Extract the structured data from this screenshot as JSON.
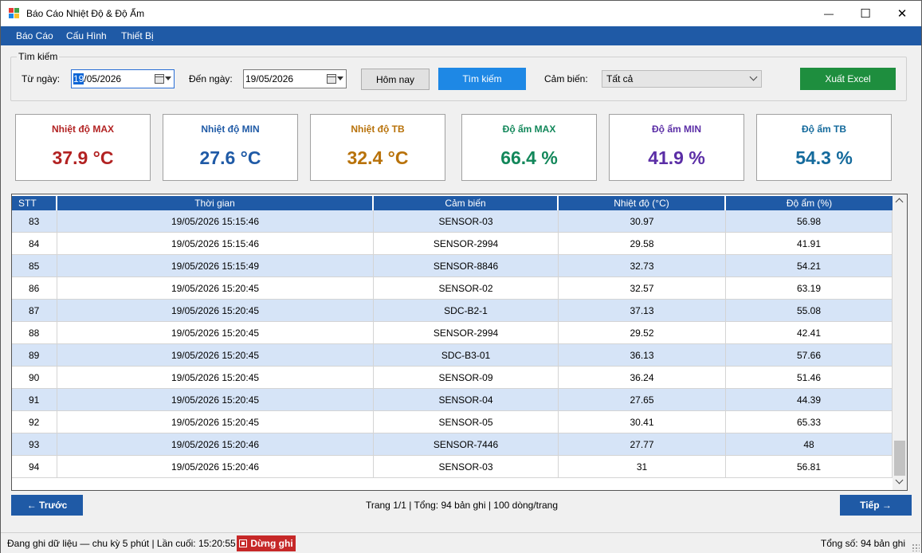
{
  "window": {
    "title": "Báo Cáo Nhiệt Độ & Độ Ẩm",
    "minimize": "—",
    "maximize": "☐",
    "close": "✕"
  },
  "menu": [
    "Báo Cáo",
    "Cấu Hình",
    "Thiết Bị"
  ],
  "search": {
    "legend": "Tìm kiếm",
    "from_label": "Từ ngày:",
    "from_value_sel": "19",
    "from_value_rest": "/05/2026",
    "to_label": "Đến ngày:",
    "to_value": "19/05/2026",
    "today_button": "Hôm nay",
    "search_button": "Tìm kiếm",
    "sensor_label": "Cảm biến:",
    "sensor_value": "Tất cả",
    "export_button": "Xuất Excel"
  },
  "cards": [
    {
      "title": "Nhiệt độ MAX",
      "value": "37.9 °C",
      "color": "#b22222"
    },
    {
      "title": "Nhiệt độ MIN",
      "value": "27.6 °C",
      "color": "#1f5aa6"
    },
    {
      "title": "Nhiệt độ TB",
      "value": "32.4 °C",
      "color": "#b8720a"
    },
    {
      "title": "Độ ẩm MAX",
      "value": "66.4 %",
      "color": "#12875a"
    },
    {
      "title": "Độ ẩm MIN",
      "value": "41.9 %",
      "color": "#5b2ea6"
    },
    {
      "title": "Độ ẩm TB",
      "value": "54.3 %",
      "color": "#146a9c"
    }
  ],
  "table": {
    "columns": [
      "STT",
      "Thời gian",
      "Cảm biến",
      "Nhiệt độ (°C)",
      "Độ ẩm (%)"
    ],
    "rows": [
      [
        "83",
        "19/05/2026 15:15:46",
        "SENSOR-03",
        "30.97",
        "56.98"
      ],
      [
        "84",
        "19/05/2026 15:15:46",
        "SENSOR-2994",
        "29.58",
        "41.91"
      ],
      [
        "85",
        "19/05/2026 15:15:49",
        "SENSOR-8846",
        "32.73",
        "54.21"
      ],
      [
        "86",
        "19/05/2026 15:20:45",
        "SENSOR-02",
        "32.57",
        "63.19"
      ],
      [
        "87",
        "19/05/2026 15:20:45",
        "SDC-B2-1",
        "37.13",
        "55.08"
      ],
      [
        "88",
        "19/05/2026 15:20:45",
        "SENSOR-2994",
        "29.52",
        "42.41"
      ],
      [
        "89",
        "19/05/2026 15:20:45",
        "SDC-B3-01",
        "36.13",
        "57.66"
      ],
      [
        "90",
        "19/05/2026 15:20:45",
        "SENSOR-09",
        "36.24",
        "51.46"
      ],
      [
        "91",
        "19/05/2026 15:20:45",
        "SENSOR-04",
        "27.65",
        "44.39"
      ],
      [
        "92",
        "19/05/2026 15:20:45",
        "SENSOR-05",
        "30.41",
        "65.33"
      ],
      [
        "93",
        "19/05/2026 15:20:46",
        "SENSOR-7446",
        "27.77",
        "48"
      ],
      [
        "94",
        "19/05/2026 15:20:46",
        "SENSOR-03",
        "31",
        "56.81"
      ]
    ]
  },
  "pager": {
    "prev": "← Trước",
    "next": "Tiếp →",
    "info": "Trang 1/1  |  Tổng: 94 bản ghi  |  100 dòng/trang"
  },
  "status": {
    "left": "Đang ghi dữ liệu — chu kỳ 5 phút | Lần cuối: 15:20:55",
    "stop_button": "Dừng ghi",
    "right": "Tổng số: 94 bản ghi"
  }
}
